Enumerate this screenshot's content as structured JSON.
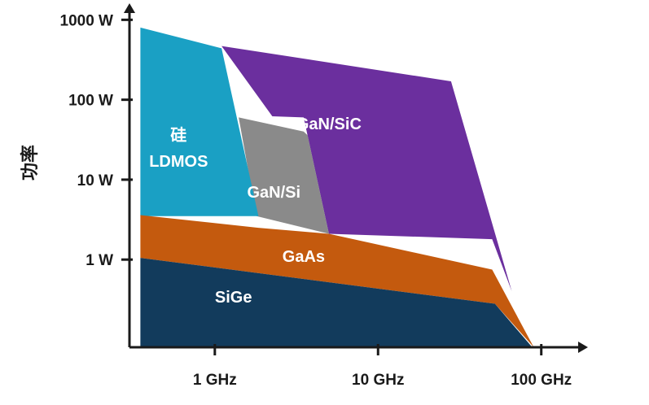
{
  "chart_data": {
    "type": "area",
    "title": "",
    "xlabel": "",
    "ylabel": "功率",
    "x_scale": "log",
    "y_scale": "log",
    "x_ticks": [
      {
        "value": 1,
        "label": "1 GHz"
      },
      {
        "value": 10,
        "label": "10 GHz"
      },
      {
        "value": 100,
        "label": "100 GHz"
      }
    ],
    "y_ticks": [
      {
        "value": 1,
        "label": "1 W"
      },
      {
        "value": 10,
        "label": "10 W"
      },
      {
        "value": 100,
        "label": "100 W"
      },
      {
        "value": 1000,
        "label": "1000 W"
      }
    ],
    "xlim": [
      0.3,
      140
    ],
    "ylim": [
      0.08,
      1400
    ],
    "regions": [
      {
        "label_lines": [
          "GaN/SiC"
        ],
        "color": "#6b2f9e",
        "label_at": [
          5,
          50
        ],
        "polygon": [
          [
            1.1,
            470
          ],
          [
            28,
            170
          ],
          [
            66,
            0.4
          ],
          [
            50,
            1.8
          ],
          [
            5,
            2.1
          ],
          [
            3.5,
            60
          ],
          [
            2.25,
            62
          ]
        ]
      },
      {
        "label_lines": [
          "GaN/Si"
        ],
        "color": "#8a8a8a",
        "label_at": [
          2.3,
          7
        ],
        "polygon": [
          [
            1.4,
            60
          ],
          [
            3.5,
            40
          ],
          [
            3.7,
            36
          ],
          [
            5,
            2.1
          ],
          [
            1.8,
            3.5
          ]
        ]
      },
      {
        "label_lines": [
          "硅",
          "LDMOS"
        ],
        "color": "#1aa0c4",
        "label_at": [
          0.6,
          25
        ],
        "polygon": [
          [
            0.35,
            800
          ],
          [
            1.05,
            450
          ],
          [
            1.1,
            440
          ],
          [
            1.85,
            3.5
          ],
          [
            0.35,
            3.5
          ]
        ]
      },
      {
        "label_lines": [
          "GaAs"
        ],
        "color": "#c45a0e",
        "label_at": [
          3.5,
          1.1
        ],
        "polygon": [
          [
            0.35,
            3.6
          ],
          [
            1.85,
            2.5
          ],
          [
            5,
            2.1
          ],
          [
            50,
            0.75
          ],
          [
            90,
            0.07
          ],
          [
            52,
            0.28
          ],
          [
            0.35,
            1.05
          ]
        ]
      },
      {
        "label_lines": [
          "SiGe"
        ],
        "color": "#123b5c",
        "label_at": [
          1.3,
          0.34
        ],
        "polygon": [
          [
            0.35,
            1.05
          ],
          [
            52,
            0.28
          ],
          [
            88,
            0.07
          ],
          [
            0.35,
            0.07
          ]
        ]
      }
    ]
  }
}
